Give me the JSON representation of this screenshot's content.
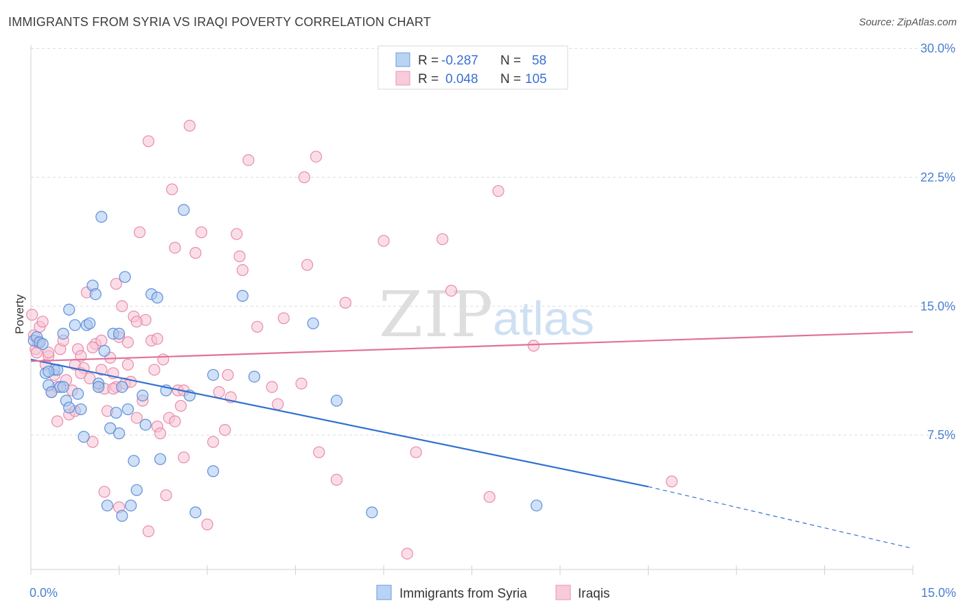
{
  "header": {
    "title": "IMMIGRANTS FROM SYRIA VS IRAQI POVERTY CORRELATION CHART",
    "source": "Source: ZipAtlas.com"
  },
  "watermark": {
    "zip": "ZIP",
    "atlas": "atlas"
  },
  "colors": {
    "blue_fill": "#a9c7ef",
    "blue_stroke": "#5b8fd9",
    "blue_line": "#2f6fd0",
    "pink_fill": "#f6c3d4",
    "pink_stroke": "#e98aab",
    "pink_line": "#e0709a",
    "axis_label": "#4a7fd0",
    "grid": "#dcdcdc"
  },
  "legend": {
    "rows": [
      {
        "r_label": "R =",
        "r_value": "-0.287",
        "n_label": "N =",
        "n_value": "58"
      },
      {
        "r_label": "R =",
        "r_value": "0.048",
        "n_label": "N =",
        "n_value": "105"
      }
    ]
  },
  "bottom_legend": {
    "series1": "Immigrants from Syria",
    "series2": "Iraqis"
  },
  "chart_data": {
    "type": "scatter",
    "title": "IMMIGRANTS FROM SYRIA VS IRAQI POVERTY CORRELATION CHART",
    "xlabel": "",
    "ylabel": "Poverty",
    "xlim": [
      0,
      15
    ],
    "ylim": [
      0,
      30.5
    ],
    "x_tick_labels": [
      "0.0%",
      "15.0%"
    ],
    "y_ticks": [
      7.5,
      15.0,
      22.5,
      30.0
    ],
    "y_tick_labels": [
      "7.5%",
      "15.0%",
      "22.5%",
      "30.0%"
    ],
    "series": [
      {
        "name": "Immigrants from Syria",
        "r": -0.287,
        "n": 58,
        "trend": {
          "x0": 0.0,
          "y0": 11.9,
          "x1": 10.5,
          "y1": 4.5,
          "dash_to_x": 15.0,
          "dash_to_y": 0.9
        },
        "points": [
          [
            0.05,
            13.0
          ],
          [
            0.1,
            13.2
          ],
          [
            0.15,
            12.9
          ],
          [
            0.2,
            12.8
          ],
          [
            0.25,
            11.1
          ],
          [
            0.3,
            10.4
          ],
          [
            0.35,
            10.0
          ],
          [
            0.4,
            11.3
          ],
          [
            0.45,
            11.3
          ],
          [
            0.5,
            10.3
          ],
          [
            0.55,
            10.3
          ],
          [
            0.6,
            9.5
          ],
          [
            0.65,
            9.1
          ],
          [
            0.3,
            11.2
          ],
          [
            0.65,
            14.8
          ],
          [
            0.75,
            13.9
          ],
          [
            0.8,
            9.9
          ],
          [
            0.85,
            9.0
          ],
          [
            0.9,
            7.4
          ],
          [
            0.95,
            13.9
          ],
          [
            1.0,
            14.0
          ],
          [
            1.05,
            16.2
          ],
          [
            1.1,
            15.7
          ],
          [
            1.15,
            10.5
          ],
          [
            1.2,
            20.2
          ],
          [
            1.25,
            12.4
          ],
          [
            1.3,
            3.4
          ],
          [
            1.35,
            7.9
          ],
          [
            1.4,
            13.4
          ],
          [
            1.45,
            8.8
          ],
          [
            1.5,
            7.6
          ],
          [
            1.55,
            2.8
          ],
          [
            1.6,
            16.7
          ],
          [
            1.65,
            9.0
          ],
          [
            1.7,
            3.4
          ],
          [
            1.75,
            6.0
          ],
          [
            1.8,
            4.3
          ],
          [
            1.9,
            9.8
          ],
          [
            1.95,
            8.1
          ],
          [
            2.05,
            15.7
          ],
          [
            2.15,
            15.5
          ],
          [
            2.2,
            6.1
          ],
          [
            2.3,
            10.1
          ],
          [
            2.6,
            20.6
          ],
          [
            2.7,
            9.8
          ],
          [
            2.8,
            3.0
          ],
          [
            3.1,
            5.4
          ],
          [
            3.1,
            11.0
          ],
          [
            3.6,
            15.6
          ],
          [
            3.8,
            10.9
          ],
          [
            4.8,
            14.0
          ],
          [
            5.2,
            9.5
          ],
          [
            5.8,
            3.0
          ],
          [
            8.6,
            3.4
          ],
          [
            1.15,
            10.3
          ],
          [
            0.55,
            13.4
          ],
          [
            1.5,
            13.4
          ],
          [
            1.55,
            10.3
          ]
        ]
      },
      {
        "name": "Iraqis",
        "r": 0.048,
        "n": 105,
        "trend": {
          "x0": 0.0,
          "y0": 11.8,
          "x1": 15.0,
          "y1": 13.5
        },
        "points": [
          [
            0.02,
            14.5
          ],
          [
            0.05,
            13.3
          ],
          [
            0.08,
            12.5
          ],
          [
            0.1,
            12.3
          ],
          [
            0.12,
            12.9
          ],
          [
            0.15,
            13.8
          ],
          [
            0.2,
            14.1
          ],
          [
            0.25,
            11.6
          ],
          [
            0.3,
            12.1
          ],
          [
            0.35,
            10.0
          ],
          [
            0.4,
            11.0
          ],
          [
            0.45,
            8.3
          ],
          [
            0.5,
            12.5
          ],
          [
            0.55,
            13.0
          ],
          [
            0.6,
            10.7
          ],
          [
            0.65,
            8.7
          ],
          [
            0.7,
            10.1
          ],
          [
            0.75,
            11.6
          ],
          [
            0.8,
            12.5
          ],
          [
            0.85,
            12.1
          ],
          [
            0.9,
            11.4
          ],
          [
            0.95,
            15.8
          ],
          [
            1.0,
            10.8
          ],
          [
            1.05,
            7.1
          ],
          [
            1.1,
            12.8
          ],
          [
            1.15,
            10.3
          ],
          [
            1.2,
            11.3
          ],
          [
            1.25,
            10.2
          ],
          [
            1.3,
            8.9
          ],
          [
            1.35,
            12.0
          ],
          [
            1.4,
            11.1
          ],
          [
            1.45,
            10.3
          ],
          [
            1.5,
            13.2
          ],
          [
            1.55,
            15.0
          ],
          [
            1.6,
            10.5
          ],
          [
            1.65,
            11.6
          ],
          [
            1.7,
            10.6
          ],
          [
            1.75,
            14.4
          ],
          [
            1.8,
            8.5
          ],
          [
            1.85,
            19.3
          ],
          [
            1.9,
            9.5
          ],
          [
            1.95,
            14.2
          ],
          [
            2.0,
            24.6
          ],
          [
            2.05,
            13.0
          ],
          [
            2.1,
            11.3
          ],
          [
            2.15,
            8.0
          ],
          [
            2.2,
            7.6
          ],
          [
            2.25,
            11.9
          ],
          [
            2.3,
            4.0
          ],
          [
            2.35,
            8.5
          ],
          [
            2.4,
            21.8
          ],
          [
            2.45,
            18.4
          ],
          [
            2.5,
            10.1
          ],
          [
            2.55,
            9.2
          ],
          [
            2.6,
            6.2
          ],
          [
            2.7,
            25.5
          ],
          [
            2.8,
            18.1
          ],
          [
            2.9,
            19.3
          ],
          [
            3.0,
            2.3
          ],
          [
            3.1,
            7.1
          ],
          [
            3.2,
            10.0
          ],
          [
            3.3,
            7.8
          ],
          [
            3.4,
            9.7
          ],
          [
            3.5,
            19.2
          ],
          [
            3.55,
            17.9
          ],
          [
            3.6,
            17.1
          ],
          [
            3.7,
            23.5
          ],
          [
            3.85,
            13.8
          ],
          [
            4.1,
            10.3
          ],
          [
            4.2,
            9.3
          ],
          [
            4.3,
            14.3
          ],
          [
            4.6,
            10.5
          ],
          [
            4.65,
            22.5
          ],
          [
            4.7,
            17.4
          ],
          [
            4.85,
            23.7
          ],
          [
            4.9,
            6.5
          ],
          [
            5.2,
            4.9
          ],
          [
            5.35,
            15.2
          ],
          [
            6.0,
            18.8
          ],
          [
            6.4,
            0.6
          ],
          [
            6.55,
            6.5
          ],
          [
            7.0,
            18.9
          ],
          [
            7.15,
            15.9
          ],
          [
            7.8,
            3.9
          ],
          [
            7.95,
            21.7
          ],
          [
            8.55,
            12.7
          ],
          [
            10.9,
            4.8
          ],
          [
            1.25,
            4.2
          ],
          [
            1.45,
            16.3
          ],
          [
            1.5,
            3.3
          ],
          [
            2.0,
            1.9
          ],
          [
            0.75,
            8.9
          ],
          [
            0.85,
            11.1
          ],
          [
            1.05,
            12.6
          ],
          [
            1.2,
            13.0
          ],
          [
            1.8,
            14.1
          ],
          [
            2.15,
            13.1
          ],
          [
            2.45,
            8.3
          ],
          [
            2.6,
            10.1
          ],
          [
            3.35,
            11.0
          ],
          [
            0.15,
            12.9
          ],
          [
            0.3,
            12.3
          ],
          [
            0.45,
            10.3
          ],
          [
            1.65,
            12.9
          ],
          [
            1.4,
            10.2
          ]
        ]
      }
    ]
  }
}
